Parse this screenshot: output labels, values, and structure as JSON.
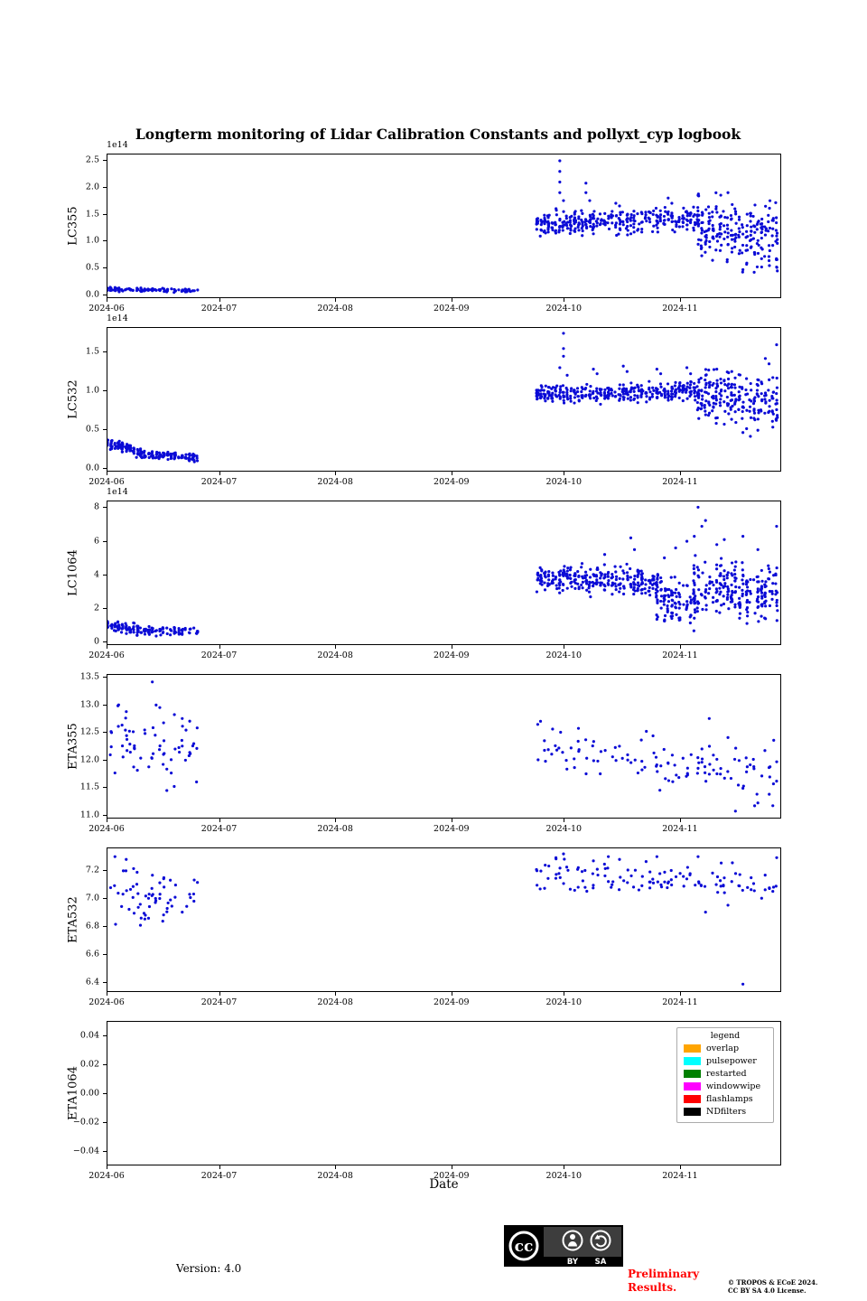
{
  "title": "Longterm monitoring of Lidar Calibration Constants and pollyxt_cyp logbook",
  "xlabel": "Date",
  "point_color": "#0b0bd6",
  "footer": {
    "version": "Version: 4.0",
    "preliminary_line1": "Preliminary",
    "preliminary_line2": "Results.",
    "preliminary_color": "#ff0000",
    "copyright_line1": "© TROPOS & ECoE 2024.",
    "copyright_line2": "CC BY SA 4.0 License.",
    "cc_badge": {
      "cc": "cc",
      "by": "BY",
      "sa": "SA"
    }
  },
  "chart_data": [
    {
      "type": "scatter",
      "ylabel": "LC355",
      "offset_text": "1e14",
      "xlim": [
        0,
        180
      ],
      "ylim": [
        -0.07,
        2.62
      ],
      "xticks": [
        {
          "v": 0,
          "label": "2024-06"
        },
        {
          "v": 30,
          "label": "2024-07"
        },
        {
          "v": 61,
          "label": "2024-08"
        },
        {
          "v": 92,
          "label": "2024-09"
        },
        {
          "v": 122,
          "label": "2024-10"
        },
        {
          "v": 153,
          "label": "2024-11"
        }
      ],
      "yticks": [
        {
          "v": 0.0,
          "label": "0.0"
        },
        {
          "v": 0.5,
          "label": "0.5"
        },
        {
          "v": 1.0,
          "label": "1.0"
        },
        {
          "v": 1.5,
          "label": "1.5"
        },
        {
          "v": 2.0,
          "label": "2.0"
        },
        {
          "v": 2.5,
          "label": "2.5"
        }
      ],
      "clusters": [
        {
          "seed": 11,
          "x0": 0,
          "x1": 24,
          "n": 110,
          "y0": 0.08,
          "y1": 0.06,
          "sd": 0.018
        },
        {
          "seed": 12,
          "x0": 115,
          "x1": 158,
          "n": 330,
          "y0": 1.32,
          "y1": 1.42,
          "sd": 0.11
        },
        {
          "seed": 13,
          "x0": 158,
          "x1": 179,
          "n": 210,
          "y0": 1.3,
          "y1": 1.05,
          "sd": 0.28
        }
      ],
      "outliers": [
        [
          120,
          1.6
        ],
        [
          121,
          2.5
        ],
        [
          121,
          2.3
        ],
        [
          121,
          2.1
        ],
        [
          121,
          1.9
        ],
        [
          122,
          1.75
        ],
        [
          128,
          2.08
        ],
        [
          128,
          1.9
        ],
        [
          129,
          1.75
        ],
        [
          136,
          1.7
        ],
        [
          137,
          1.65
        ],
        [
          150,
          1.8
        ],
        [
          151,
          1.7
        ],
        [
          158,
          1.85
        ],
        [
          166,
          1.9
        ],
        [
          170,
          0.45
        ],
        [
          171,
          0.55
        ],
        [
          173,
          0.4
        ],
        [
          175,
          0.5
        ],
        [
          177,
          0.62
        ],
        [
          179,
          0.5
        ]
      ]
    },
    {
      "type": "scatter",
      "ylabel": "LC532",
      "offset_text": "1e14",
      "xlim": [
        0,
        180
      ],
      "ylim": [
        -0.05,
        1.82
      ],
      "xticks": [
        {
          "v": 0,
          "label": "2024-06"
        },
        {
          "v": 30,
          "label": "2024-07"
        },
        {
          "v": 61,
          "label": "2024-08"
        },
        {
          "v": 92,
          "label": "2024-09"
        },
        {
          "v": 122,
          "label": "2024-10"
        },
        {
          "v": 153,
          "label": "2024-11"
        }
      ],
      "yticks": [
        {
          "v": 0.0,
          "label": "0.0"
        },
        {
          "v": 0.5,
          "label": "0.5"
        },
        {
          "v": 1.0,
          "label": "1.0"
        },
        {
          "v": 1.5,
          "label": "1.5"
        }
      ],
      "clusters": [
        {
          "seed": 21,
          "x0": 0,
          "x1": 9,
          "n": 90,
          "y0": 0.32,
          "y1": 0.19,
          "sd": 0.035
        },
        {
          "seed": 22,
          "x0": 9,
          "x1": 24,
          "n": 110,
          "y0": 0.16,
          "y1": 0.13,
          "sd": 0.025
        },
        {
          "seed": 23,
          "x0": 115,
          "x1": 158,
          "n": 340,
          "y0": 0.95,
          "y1": 1.0,
          "sd": 0.06
        },
        {
          "seed": 24,
          "x0": 158,
          "x1": 179,
          "n": 210,
          "y0": 0.95,
          "y1": 0.85,
          "sd": 0.16
        }
      ],
      "outliers": [
        [
          121,
          1.3
        ],
        [
          122,
          1.75
        ],
        [
          122,
          1.55
        ],
        [
          122,
          1.45
        ],
        [
          123,
          1.2
        ],
        [
          130,
          1.28
        ],
        [
          131,
          1.22
        ],
        [
          138,
          1.32
        ],
        [
          139,
          1.25
        ],
        [
          147,
          1.28
        ],
        [
          148,
          1.22
        ],
        [
          155,
          1.3
        ],
        [
          156,
          1.22
        ],
        [
          163,
          1.28
        ],
        [
          167,
          1.25
        ],
        [
          170,
          0.45
        ],
        [
          171,
          0.5
        ],
        [
          172,
          0.4
        ],
        [
          174,
          0.48
        ],
        [
          176,
          1.42
        ],
        [
          177,
          1.35
        ],
        [
          178,
          0.52
        ],
        [
          179,
          1.6
        ],
        [
          179,
          0.75
        ]
      ]
    },
    {
      "type": "scatter",
      "ylabel": "LC1064",
      "offset_text": "1e14",
      "xlim": [
        0,
        180
      ],
      "ylim": [
        -0.2,
        8.4
      ],
      "xticks": [
        {
          "v": 0,
          "label": "2024-06"
        },
        {
          "v": 30,
          "label": "2024-07"
        },
        {
          "v": 61,
          "label": "2024-08"
        },
        {
          "v": 92,
          "label": "2024-09"
        },
        {
          "v": 122,
          "label": "2024-10"
        },
        {
          "v": 153,
          "label": "2024-11"
        }
      ],
      "yticks": [
        {
          "v": 0,
          "label": "0"
        },
        {
          "v": 2,
          "label": "2"
        },
        {
          "v": 4,
          "label": "4"
        },
        {
          "v": 6,
          "label": "6"
        },
        {
          "v": 8,
          "label": "8"
        }
      ],
      "clusters": [
        {
          "seed": 31,
          "x0": 0,
          "x1": 8,
          "n": 70,
          "y0": 0.95,
          "y1": 0.7,
          "sd": 0.16
        },
        {
          "seed": 32,
          "x0": 8,
          "x1": 24,
          "n": 90,
          "y0": 0.6,
          "y1": 0.55,
          "sd": 0.13
        },
        {
          "seed": 33,
          "x0": 115,
          "x1": 147,
          "n": 280,
          "y0": 3.75,
          "y1": 3.55,
          "sd": 0.4
        },
        {
          "seed": 34,
          "x0": 147,
          "x1": 157,
          "n": 100,
          "y0": 2.5,
          "y1": 2.2,
          "sd": 0.6
        },
        {
          "seed": 35,
          "x0": 157,
          "x1": 179,
          "n": 230,
          "y0": 3.3,
          "y1": 2.8,
          "sd": 0.75
        }
      ],
      "outliers": [
        [
          133,
          5.2
        ],
        [
          140,
          6.2
        ],
        [
          141,
          5.5
        ],
        [
          149,
          5.0
        ],
        [
          152,
          5.6
        ],
        [
          155,
          6.0
        ],
        [
          157,
          6.3
        ],
        [
          158,
          8.05
        ],
        [
          159,
          6.9
        ],
        [
          160,
          7.25
        ],
        [
          163,
          5.8
        ],
        [
          165,
          6.1
        ],
        [
          170,
          6.3
        ],
        [
          174,
          5.5
        ],
        [
          179,
          6.9
        ],
        [
          147,
          1.3
        ],
        [
          149,
          1.2
        ],
        [
          151,
          1.35
        ],
        [
          153,
          1.25
        ]
      ]
    },
    {
      "type": "scatter",
      "ylabel": "ETA355",
      "xlim": [
        0,
        180
      ],
      "ylim": [
        10.93,
        13.55
      ],
      "xticks": [
        {
          "v": 0,
          "label": "2024-06"
        },
        {
          "v": 30,
          "label": "2024-07"
        },
        {
          "v": 61,
          "label": "2024-08"
        },
        {
          "v": 92,
          "label": "2024-09"
        },
        {
          "v": 122,
          "label": "2024-10"
        },
        {
          "v": 153,
          "label": "2024-11"
        }
      ],
      "yticks": [
        {
          "v": 11.0,
          "label": "11.0"
        },
        {
          "v": 11.5,
          "label": "11.5"
        },
        {
          "v": 12.0,
          "label": "12.0"
        },
        {
          "v": 12.5,
          "label": "12.5"
        },
        {
          "v": 13.0,
          "label": "13.0"
        },
        {
          "v": 13.5,
          "label": "13.5"
        }
      ],
      "clusters": [
        {
          "seed": 41,
          "x0": 1,
          "x1": 24,
          "n": 62,
          "y0": 12.35,
          "y1": 12.2,
          "sd": 0.3
        },
        {
          "seed": 42,
          "x0": 115,
          "x1": 179,
          "n": 118,
          "y0": 12.2,
          "y1": 11.75,
          "sd": 0.24
        }
      ],
      "outliers": [
        [
          12,
          13.42
        ],
        [
          3,
          13.0
        ],
        [
          14,
          12.95
        ],
        [
          20,
          12.75
        ],
        [
          22,
          12.7
        ],
        [
          2,
          11.75
        ],
        [
          8,
          11.8
        ],
        [
          161,
          12.75
        ],
        [
          166,
          12.4
        ],
        [
          168,
          11.05
        ],
        [
          174,
          11.2
        ],
        [
          178,
          11.15
        ],
        [
          179,
          11.6
        ]
      ]
    },
    {
      "type": "scatter",
      "ylabel": "ETA532",
      "xlim": [
        0,
        180
      ],
      "ylim": [
        6.33,
        7.36
      ],
      "xticks": [
        {
          "v": 0,
          "label": "2024-06"
        },
        {
          "v": 30,
          "label": "2024-07"
        },
        {
          "v": 61,
          "label": "2024-08"
        },
        {
          "v": 92,
          "label": "2024-09"
        },
        {
          "v": 122,
          "label": "2024-10"
        },
        {
          "v": 153,
          "label": "2024-11"
        }
      ],
      "yticks": [
        {
          "v": 6.4,
          "label": "6.4"
        },
        {
          "v": 6.6,
          "label": "6.6"
        },
        {
          "v": 6.8,
          "label": "6.8"
        },
        {
          "v": 7.0,
          "label": "7.0"
        },
        {
          "v": 7.2,
          "label": "7.2"
        }
      ],
      "clusters": [
        {
          "seed": 51,
          "x0": 1,
          "x1": 24,
          "n": 58,
          "y0": 7.1,
          "y1": 7.0,
          "sd": 0.1
        },
        {
          "seed": 52,
          "x0": 115,
          "x1": 179,
          "n": 118,
          "y0": 7.17,
          "y1": 7.12,
          "sd": 0.065
        }
      ],
      "outliers": [
        [
          2,
          7.3
        ],
        [
          5,
          7.28
        ],
        [
          10,
          6.85
        ],
        [
          15,
          6.88
        ],
        [
          20,
          6.9
        ],
        [
          122,
          7.32
        ],
        [
          130,
          7.27
        ],
        [
          134,
          7.3
        ],
        [
          137,
          7.28
        ],
        [
          147,
          7.3
        ],
        [
          158,
          7.3
        ],
        [
          160,
          6.9
        ],
        [
          166,
          6.95
        ],
        [
          170,
          6.38
        ],
        [
          175,
          7.0
        ],
        [
          178,
          7.05
        ]
      ]
    },
    {
      "type": "scatter",
      "ylabel": "ETA1064",
      "xlim": [
        0,
        180
      ],
      "ylim": [
        -0.05,
        0.05
      ],
      "xticks": [
        {
          "v": 0,
          "label": "2024-06"
        },
        {
          "v": 30,
          "label": "2024-07"
        },
        {
          "v": 61,
          "label": "2024-08"
        },
        {
          "v": 92,
          "label": "2024-09"
        },
        {
          "v": 122,
          "label": "2024-10"
        },
        {
          "v": 153,
          "label": "2024-11"
        }
      ],
      "yticks": [
        {
          "v": -0.04,
          "label": "−0.04"
        },
        {
          "v": -0.02,
          "label": "−0.02"
        },
        {
          "v": 0.0,
          "label": "0.00"
        },
        {
          "v": 0.02,
          "label": "0.02"
        },
        {
          "v": 0.04,
          "label": "0.04"
        }
      ],
      "clusters": [],
      "outliers": [],
      "legend": {
        "title": "legend",
        "entries": [
          {
            "label": "overlap",
            "color": "#ffa500"
          },
          {
            "label": "pulsepower",
            "color": "#00ffff"
          },
          {
            "label": "restarted",
            "color": "#008000"
          },
          {
            "label": "windowwipe",
            "color": "#ff00ff"
          },
          {
            "label": "flashlamps",
            "color": "#ff0000"
          },
          {
            "label": "NDfilters",
            "color": "#000000"
          }
        ]
      }
    }
  ]
}
